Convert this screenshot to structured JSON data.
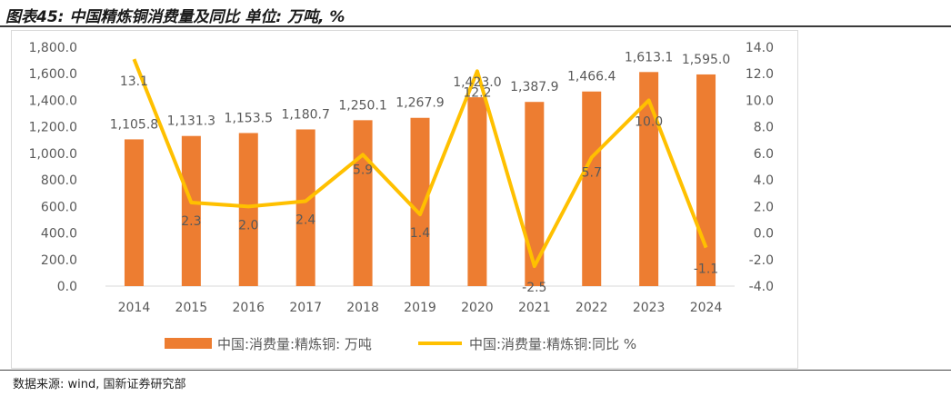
{
  "title": "图表45: 中国精炼铜消费量及同比 单位: 万吨, %",
  "source": "数据来源: wind, 国新证券研究部",
  "colors": {
    "bar": "#ED7D31",
    "line": "#FFC000",
    "text": "#595959",
    "grid": "#d9d9d9"
  },
  "chart_data": {
    "type": "bar+line",
    "categories": [
      "2014",
      "2015",
      "2016",
      "2017",
      "2018",
      "2019",
      "2020",
      "2021",
      "2022",
      "2023",
      "2024"
    ],
    "series": [
      {
        "name": "中国:消费量:精炼铜: 万吨",
        "type": "bar",
        "axis": "left",
        "values": [
          1105.8,
          1131.3,
          1153.5,
          1180.7,
          1250.1,
          1267.9,
          1423.0,
          1387.9,
          1466.4,
          1613.1,
          1595.0
        ],
        "labels": [
          "1,105.8",
          "1,131.3",
          "1,153.5",
          "1,180.7",
          "1,250.1",
          "1,267.9",
          "1,423.0",
          "1,387.9",
          "1,466.4",
          "1,613.1",
          "1,595.0"
        ]
      },
      {
        "name": "中国:消费量:精炼铜:同比 %",
        "type": "line",
        "axis": "right",
        "values": [
          13.1,
          2.3,
          2.0,
          2.4,
          5.9,
          1.4,
          12.2,
          -2.5,
          5.7,
          10.0,
          -1.1
        ],
        "labels": [
          "13.1",
          "2.3",
          "2.0",
          "2.4",
          "5.9",
          "1.4",
          "12.2",
          "-2.5",
          "5.7",
          "10.0",
          "-1.1"
        ]
      }
    ],
    "y_left": {
      "min": 0,
      "max": 1800,
      "step": 200,
      "tick_labels": [
        "0.0",
        "200.0",
        "400.0",
        "600.0",
        "800.0",
        "1,000.0",
        "1,200.0",
        "1,400.0",
        "1,600.0",
        "1,800.0"
      ]
    },
    "y_right": {
      "min": -4,
      "max": 14,
      "step": 2,
      "tick_labels": [
        "-4.0",
        "-2.0",
        "0.0",
        "2.0",
        "4.0",
        "6.0",
        "8.0",
        "10.0",
        "12.0",
        "14.0"
      ]
    },
    "legend_position": "bottom",
    "grid": false
  }
}
